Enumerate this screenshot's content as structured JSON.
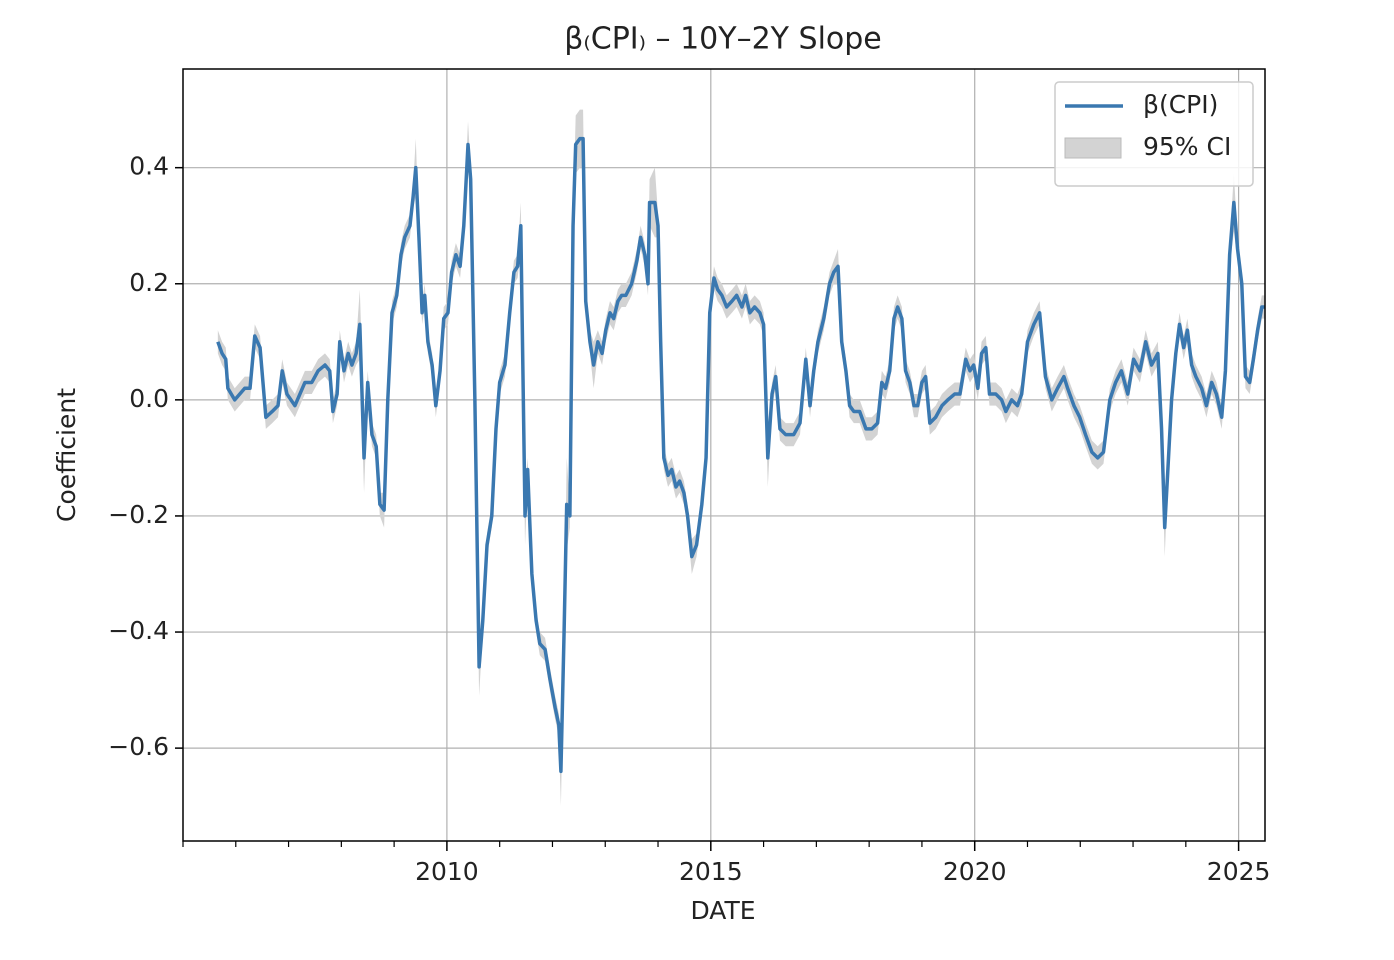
{
  "chart_data": {
    "type": "line",
    "title": "β₍CPI₎ – 10Y–2Y Slope",
    "x_label": "DATE",
    "y_label": "Coefficient",
    "x": [
      2005.66,
      2005.74,
      2005.81,
      2005.85,
      2005.98,
      2006.17,
      2006.27,
      2006.36,
      2006.46,
      2006.57,
      2006.69,
      2006.8,
      2006.88,
      2006.97,
      2007.12,
      2007.31,
      2007.44,
      2007.56,
      2007.69,
      2007.78,
      2007.84,
      2007.92,
      2007.97,
      2008.05,
      2008.13,
      2008.2,
      2008.28,
      2008.35,
      2008.43,
      2008.5,
      2008.58,
      2008.66,
      2008.73,
      2008.81,
      2008.88,
      2008.96,
      2009.05,
      2009.13,
      2009.2,
      2009.3,
      2009.36,
      2009.41,
      2009.47,
      2009.53,
      2009.58,
      2009.64,
      2009.72,
      2009.79,
      2009.87,
      2009.94,
      2010.02,
      2010.09,
      2010.17,
      2010.25,
      2010.32,
      2010.4,
      2010.45,
      2010.53,
      2010.61,
      2010.68,
      2010.76,
      2010.85,
      2010.93,
      2011.0,
      2011.1,
      2011.19,
      2011.27,
      2011.34,
      2011.4,
      2011.48,
      2011.53,
      2011.61,
      2011.69,
      2011.76,
      2011.86,
      2011.95,
      2012.05,
      2012.12,
      2012.16,
      2012.22,
      2012.27,
      2012.33,
      2012.39,
      2012.44,
      2012.52,
      2012.58,
      2012.63,
      2012.71,
      2012.78,
      2012.86,
      2012.94,
      2013.01,
      2013.09,
      2013.16,
      2013.24,
      2013.31,
      2013.39,
      2013.5,
      2013.6,
      2013.67,
      2013.75,
      2013.81,
      2013.84,
      2013.94,
      2014.0,
      2014.05,
      2014.11,
      2014.19,
      2014.26,
      2014.34,
      2014.41,
      2014.49,
      2014.56,
      2014.64,
      2014.73,
      2014.83,
      2014.91,
      2014.98,
      2015.06,
      2015.13,
      2015.21,
      2015.3,
      2015.4,
      2015.49,
      2015.59,
      2015.66,
      2015.74,
      2015.83,
      2015.93,
      2016.0,
      2016.08,
      2016.16,
      2016.23,
      2016.31,
      2016.42,
      2016.57,
      2016.69,
      2016.8,
      2016.88,
      2016.95,
      2017.03,
      2017.14,
      2017.25,
      2017.33,
      2017.41,
      2017.48,
      2017.56,
      2017.63,
      2017.71,
      2017.82,
      2017.94,
      2018.05,
      2018.16,
      2018.24,
      2018.31,
      2018.39,
      2018.47,
      2018.54,
      2018.62,
      2018.69,
      2018.77,
      2018.85,
      2018.92,
      2019.0,
      2019.07,
      2019.15,
      2019.26,
      2019.38,
      2019.49,
      2019.62,
      2019.72,
      2019.83,
      2019.91,
      2019.98,
      2020.06,
      2020.13,
      2020.21,
      2020.28,
      2020.4,
      2020.51,
      2020.59,
      2020.7,
      2020.81,
      2020.89,
      2021.0,
      2021.12,
      2021.23,
      2021.34,
      2021.46,
      2021.57,
      2021.69,
      2021.76,
      2021.88,
      2021.99,
      2022.1,
      2022.22,
      2022.33,
      2022.44,
      2022.56,
      2022.67,
      2022.78,
      2022.9,
      2023.01,
      2023.13,
      2023.24,
      2023.35,
      2023.47,
      2023.54,
      2023.6,
      2023.66,
      2023.73,
      2023.81,
      2023.88,
      2023.96,
      2024.03,
      2024.11,
      2024.19,
      2024.3,
      2024.39,
      2024.49,
      2024.58,
      2024.68,
      2024.75,
      2024.83,
      2024.91,
      2024.98,
      2025.06,
      2025.13,
      2025.21,
      2025.28,
      2025.36,
      2025.44,
      2025.49
    ],
    "series": [
      {
        "name": "β(CPI)",
        "color": "#3a78b0",
        "values": [
          0.1,
          0.08,
          0.07,
          0.02,
          0,
          0.02,
          0.02,
          0.11,
          0.09,
          -0.03,
          -0.02,
          -0.01,
          0.05,
          0.01,
          -0.01,
          0.03,
          0.03,
          0.05,
          0.06,
          0.05,
          -0.02,
          0.01,
          0.1,
          0.05,
          0.08,
          0.06,
          0.08,
          0.13,
          -0.1,
          0.03,
          -0.06,
          -0.08,
          -0.18,
          -0.19,
          0,
          0.15,
          0.18,
          0.25,
          0.28,
          0.3,
          0.35,
          0.4,
          0.28,
          0.15,
          0.18,
          0.1,
          0.06,
          -0.01,
          0.05,
          0.14,
          0.15,
          0.22,
          0.25,
          0.23,
          0.3,
          0.44,
          0.38,
          0,
          -0.46,
          -0.38,
          -0.25,
          -0.2,
          -0.05,
          0.03,
          0.06,
          0.15,
          0.22,
          0.23,
          0.3,
          -0.2,
          -0.12,
          -0.3,
          -0.38,
          -0.42,
          -0.43,
          -0.48,
          -0.53,
          -0.56,
          -0.64,
          -0.4,
          -0.18,
          -0.2,
          0.3,
          0.44,
          0.45,
          0.45,
          0.17,
          0.1,
          0.06,
          0.1,
          0.08,
          0.12,
          0.15,
          0.14,
          0.17,
          0.18,
          0.18,
          0.2,
          0.24,
          0.28,
          0.25,
          0.2,
          0.34,
          0.34,
          0.3,
          0.1,
          -0.1,
          -0.13,
          -0.12,
          -0.15,
          -0.14,
          -0.16,
          -0.2,
          -0.27,
          -0.25,
          -0.18,
          -0.1,
          0.15,
          0.21,
          0.19,
          0.18,
          0.16,
          0.17,
          0.18,
          0.16,
          0.18,
          0.15,
          0.16,
          0.15,
          0.13,
          -0.1,
          0.01,
          0.04,
          -0.05,
          -0.06,
          -0.06,
          -0.04,
          0.07,
          -0.01,
          0.05,
          0.1,
          0.14,
          0.2,
          0.22,
          0.23,
          0.1,
          0.05,
          -0.01,
          -0.02,
          -0.02,
          -0.05,
          -0.05,
          -0.04,
          0.03,
          0.02,
          0.05,
          0.14,
          0.16,
          0.14,
          0.05,
          0.03,
          -0.01,
          -0.01,
          0.03,
          0.04,
          -0.04,
          -0.03,
          -0.01,
          0,
          0.01,
          0.01,
          0.07,
          0.05,
          0.06,
          0.02,
          0.08,
          0.09,
          0.01,
          0.01,
          0,
          -0.02,
          0,
          -0.01,
          0.01,
          0.1,
          0.13,
          0.15,
          0.04,
          0,
          0.02,
          0.04,
          0.02,
          -0.01,
          -0.03,
          -0.06,
          -0.09,
          -0.1,
          -0.09,
          0,
          0.03,
          0.05,
          0.01,
          0.07,
          0.05,
          0.1,
          0.06,
          0.08,
          -0.05,
          -0.22,
          -0.12,
          0,
          0.08,
          0.13,
          0.09,
          0.12,
          0.06,
          0.04,
          0.02,
          -0.01,
          0.03,
          0.01,
          -0.03,
          0.05,
          0.25,
          0.34,
          0.26,
          0.2,
          0.04,
          0.03,
          0.07,
          0.12,
          0.16,
          0.16
        ]
      }
    ],
    "bands": [
      {
        "name": "95% CI",
        "color": "#d3d3d3",
        "lower": [
          0.08,
          0.06,
          0.05,
          0,
          -0.02,
          0,
          0,
          0.09,
          0.07,
          -0.05,
          -0.04,
          -0.03,
          0.03,
          -0.01,
          -0.03,
          0.01,
          0.01,
          0.03,
          0.04,
          0.03,
          -0.04,
          -0.01,
          0.08,
          0.03,
          0.06,
          0.04,
          0.06,
          0.07,
          -0.16,
          0.01,
          -0.08,
          -0.1,
          -0.2,
          -0.22,
          -0.02,
          0.13,
          0.16,
          0.23,
          0.26,
          0.28,
          0.33,
          0.35,
          0.26,
          0.13,
          0.16,
          0.08,
          0.04,
          -0.03,
          0.03,
          0.12,
          0.13,
          0.2,
          0.23,
          0.21,
          0.28,
          0.4,
          0.36,
          -0.02,
          -0.51,
          -0.4,
          -0.27,
          -0.22,
          -0.07,
          0.01,
          0.04,
          0.13,
          0.2,
          0.21,
          0.26,
          -0.25,
          -0.14,
          -0.32,
          -0.4,
          -0.44,
          -0.45,
          -0.5,
          -0.55,
          -0.58,
          -0.7,
          -0.42,
          -0.26,
          -0.22,
          0.28,
          0.39,
          0.4,
          0.4,
          0.15,
          0.08,
          0.02,
          0.08,
          0.06,
          0.1,
          0.13,
          0.12,
          0.15,
          0.16,
          0.16,
          0.18,
          0.22,
          0.26,
          0.23,
          0.18,
          0.3,
          0.28,
          0.28,
          0.08,
          -0.12,
          -0.15,
          -0.14,
          -0.17,
          -0.16,
          -0.18,
          -0.22,
          -0.3,
          -0.27,
          -0.2,
          -0.12,
          0.13,
          0.19,
          0.17,
          0.16,
          0.14,
          0.15,
          0.16,
          0.14,
          0.16,
          0.13,
          0.14,
          0.13,
          0.11,
          -0.15,
          -0.01,
          0.02,
          -0.07,
          -0.08,
          -0.08,
          -0.06,
          0.05,
          -0.03,
          0.03,
          0.08,
          0.12,
          0.18,
          0.2,
          0.2,
          0.08,
          0.03,
          -0.03,
          -0.04,
          -0.04,
          -0.07,
          -0.07,
          -0.06,
          0.01,
          0,
          0.03,
          0.12,
          0.14,
          0.12,
          0.03,
          0.01,
          -0.03,
          -0.03,
          0.01,
          0.02,
          -0.06,
          -0.05,
          -0.03,
          -0.02,
          -0.01,
          -0.01,
          0.05,
          0.03,
          0.04,
          0,
          0.06,
          0.07,
          -0.01,
          -0.01,
          -0.02,
          -0.04,
          -0.02,
          -0.03,
          -0.01,
          0.08,
          0.11,
          0.13,
          0.02,
          -0.02,
          0,
          0.02,
          0,
          -0.03,
          -0.05,
          -0.08,
          -0.11,
          -0.12,
          -0.11,
          -0.02,
          0.01,
          0.03,
          -0.01,
          0.05,
          0.03,
          0.08,
          0.04,
          0.06,
          -0.07,
          -0.27,
          -0.14,
          -0.02,
          0.06,
          0.11,
          0.07,
          0.1,
          0.04,
          0.02,
          0,
          -0.03,
          0.01,
          -0.01,
          -0.05,
          0.03,
          0.23,
          0.29,
          0.24,
          0.18,
          0.02,
          0.01,
          0.05,
          0.1,
          0.14,
          0.14
        ],
        "upper": [
          0.12,
          0.1,
          0.09,
          0.04,
          0.02,
          0.04,
          0.04,
          0.13,
          0.11,
          -0.01,
          0,
          0.01,
          0.07,
          0.03,
          0.01,
          0.05,
          0.05,
          0.07,
          0.08,
          0.07,
          0,
          0.03,
          0.12,
          0.07,
          0.1,
          0.08,
          0.1,
          0.19,
          -0.04,
          0.05,
          -0.04,
          -0.06,
          -0.16,
          -0.16,
          0.02,
          0.17,
          0.2,
          0.27,
          0.3,
          0.32,
          0.37,
          0.45,
          0.3,
          0.17,
          0.2,
          0.12,
          0.08,
          0.01,
          0.07,
          0.16,
          0.17,
          0.24,
          0.27,
          0.25,
          0.32,
          0.48,
          0.4,
          0.02,
          -0.41,
          -0.36,
          -0.23,
          -0.18,
          -0.03,
          0.05,
          0.08,
          0.17,
          0.24,
          0.25,
          0.34,
          -0.15,
          -0.1,
          -0.28,
          -0.36,
          -0.4,
          -0.41,
          -0.46,
          -0.51,
          -0.54,
          -0.58,
          -0.38,
          -0.1,
          -0.18,
          0.32,
          0.49,
          0.5,
          0.5,
          0.19,
          0.12,
          0.1,
          0.12,
          0.1,
          0.14,
          0.17,
          0.16,
          0.19,
          0.2,
          0.2,
          0.22,
          0.26,
          0.3,
          0.27,
          0.22,
          0.38,
          0.4,
          0.32,
          0.12,
          -0.08,
          -0.11,
          -0.1,
          -0.13,
          -0.12,
          -0.14,
          -0.18,
          -0.24,
          -0.23,
          -0.16,
          -0.08,
          0.17,
          0.23,
          0.21,
          0.2,
          0.18,
          0.19,
          0.2,
          0.18,
          0.2,
          0.17,
          0.18,
          0.17,
          0.15,
          -0.05,
          0.03,
          0.06,
          -0.03,
          -0.04,
          -0.04,
          -0.02,
          0.09,
          0.01,
          0.07,
          0.12,
          0.16,
          0.22,
          0.24,
          0.26,
          0.12,
          0.07,
          0.01,
          0,
          0,
          -0.03,
          -0.03,
          -0.02,
          0.05,
          0.04,
          0.07,
          0.16,
          0.18,
          0.16,
          0.07,
          0.05,
          0.01,
          0.01,
          0.05,
          0.06,
          -0.02,
          -0.01,
          0.01,
          0.02,
          0.03,
          0.03,
          0.09,
          0.07,
          0.08,
          0.04,
          0.1,
          0.11,
          0.03,
          0.03,
          0.02,
          0,
          0.02,
          0.01,
          0.03,
          0.12,
          0.15,
          0.17,
          0.06,
          0.02,
          0.04,
          0.06,
          0.04,
          0.01,
          -0.01,
          -0.04,
          -0.07,
          -0.08,
          -0.07,
          0.02,
          0.05,
          0.07,
          0.03,
          0.09,
          0.07,
          0.12,
          0.08,
          0.1,
          -0.03,
          -0.17,
          -0.1,
          0.02,
          0.1,
          0.15,
          0.11,
          0.14,
          0.08,
          0.06,
          0.04,
          0.01,
          0.05,
          0.03,
          -0.01,
          0.07,
          0.27,
          0.39,
          0.28,
          0.22,
          0.06,
          0.05,
          0.09,
          0.14,
          0.18,
          0.18
        ]
      }
    ],
    "xlim": [
      2005.0,
      2025.5
    ],
    "ylim": [
      -0.76,
      0.57
    ],
    "xticks": [
      2010,
      2015,
      2020,
      2025
    ],
    "xminorticks": [
      2005,
      2006,
      2007,
      2008,
      2009,
      2011,
      2012,
      2013,
      2014,
      2016,
      2017,
      2018,
      2019,
      2021,
      2022,
      2023,
      2024
    ],
    "yticks": [
      {
        "value": -0.6,
        "label": "−0.6"
      },
      {
        "value": -0.4,
        "label": "−0.4"
      },
      {
        "value": -0.2,
        "label": "−0.2"
      },
      {
        "value": 0,
        "label": "0.0"
      },
      0.2,
      0.4
    ],
    "grid": true,
    "legend": "upper right"
  }
}
